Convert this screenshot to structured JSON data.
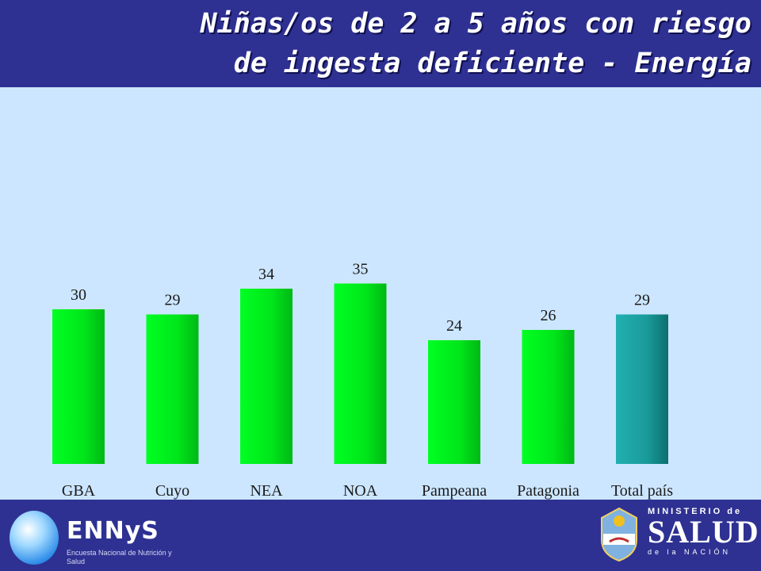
{
  "header": {
    "title_line1": "Niñas/os de 2 a 5 años con riesgo",
    "title_line2": "de ingesta deficiente - Energía"
  },
  "chart_data": {
    "type": "bar",
    "title": "Niñas/os de 2 a 5 años con riesgo de ingesta deficiente - Energía",
    "categories": [
      "GBA",
      "Cuyo",
      "NEA",
      "NOA",
      "Pampeana",
      "Patagonia",
      "Total país"
    ],
    "values": [
      30,
      29,
      34,
      35,
      24,
      26,
      29
    ],
    "data_labels": [
      "30",
      "29",
      "34",
      "35",
      "24",
      "26",
      "29"
    ],
    "ylim": [
      0,
      60
    ],
    "grid": false,
    "xlabel": "",
    "ylabel": "",
    "colors": {
      "region_bar": "#00e61a",
      "region_bar_dark": "#00b814",
      "total_bar": "#1a9a9a",
      "total_bar_dark": "#0d6e6e",
      "label_text": "#1a1a1a"
    }
  },
  "footer": {
    "ennys_name": "ENNyS",
    "ennys_subtitle": "Encuesta Nacional de Nutrición y Salud",
    "ministry_top": "MINISTERIO de",
    "ministry_main": "SALUD",
    "ministry_bottom": "de la NACIÓN"
  }
}
